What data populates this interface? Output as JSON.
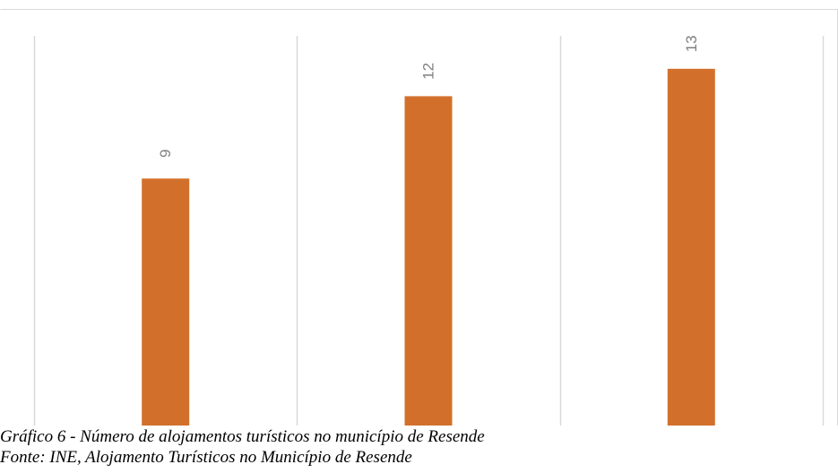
{
  "chart_data": {
    "type": "bar",
    "categories": [
      "",
      "",
      ""
    ],
    "values": [
      9,
      12,
      13
    ],
    "data_labels": [
      "9",
      "12",
      "13"
    ],
    "ylim": [
      0,
      14.2
    ],
    "grid": "vertical",
    "legend": "none",
    "bar_color": "#D2702B",
    "label_color": "#7F7F7F",
    "grid_color": "#D9D9D9",
    "border_color": "#D9D9D9"
  },
  "caption": {
    "title": "Gráfico 6 - Número de alojamentos turísticos no município de Resende",
    "source": "Fonte: INE, Alojamento Turísticos no Município de Resende"
  }
}
